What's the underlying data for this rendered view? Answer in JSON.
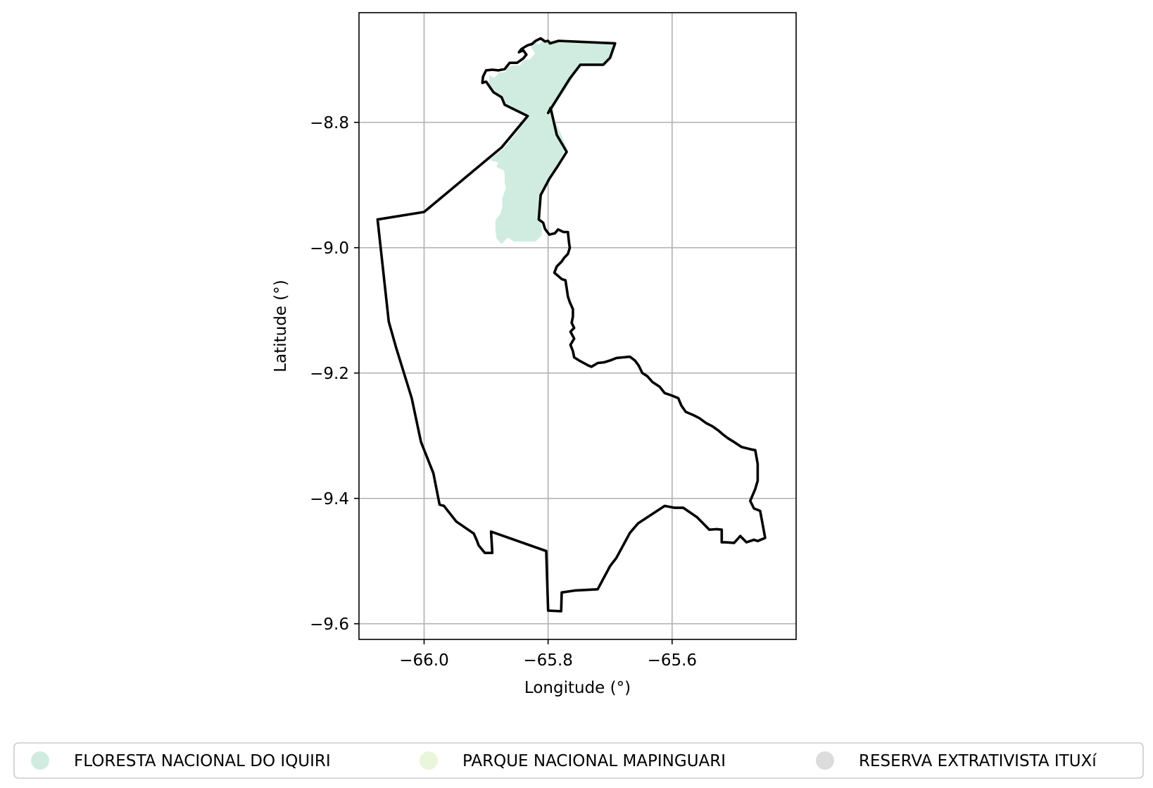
{
  "chart_data": {
    "type": "map",
    "xlabel": "Longitude (°)",
    "ylabel": "Latitude (°)",
    "xlim": [
      -66.105,
      -65.4
    ],
    "ylim": [
      -9.625,
      -8.625
    ],
    "x_ticks": [
      {
        "value": -66.0,
        "label": "−66.0"
      },
      {
        "value": -65.8,
        "label": "−65.8"
      },
      {
        "value": -65.6,
        "label": "−65.6"
      }
    ],
    "y_ticks": [
      {
        "value": -8.8,
        "label": "−8.8"
      },
      {
        "value": -9.0,
        "label": "−9.0"
      },
      {
        "value": -9.2,
        "label": "−9.2"
      },
      {
        "value": -9.4,
        "label": "−9.4"
      },
      {
        "value": -9.6,
        "label": "−9.6"
      }
    ],
    "grid": true,
    "legend_placement": "bottom, below plot, horizontal",
    "legend": [
      {
        "label": "FLORESTA NACIONAL DO IQUIRI",
        "color": "#d0ece1"
      },
      {
        "label": "PARQUE NACIONAL MAPINGUARI",
        "color": "#eaf6dc"
      },
      {
        "label": "RESERVA EXTRATIVISTA ITUXí",
        "color": "#dcdcdc"
      }
    ],
    "areas": [
      {
        "name": "FLORESTA NACIONAL DO IQUIRI",
        "fill": "#d0ece1",
        "stroke": "none",
        "coordinates": [
          [
            -65.895,
            -8.724
          ],
          [
            -65.887,
            -8.729
          ],
          [
            -65.879,
            -8.72
          ],
          [
            -65.869,
            -8.72
          ],
          [
            -65.866,
            -8.713
          ],
          [
            -65.858,
            -8.709
          ],
          [
            -65.845,
            -8.709
          ],
          [
            -65.84,
            -8.701
          ],
          [
            -65.83,
            -8.7
          ],
          [
            -65.821,
            -8.69
          ],
          [
            -65.831,
            -8.675
          ],
          [
            -65.823,
            -8.669
          ],
          [
            -65.815,
            -8.676
          ],
          [
            -65.81,
            -8.671
          ],
          [
            -65.79,
            -8.67
          ],
          [
            -65.783,
            -8.67
          ],
          [
            -65.692,
            -8.674
          ],
          [
            -65.701,
            -8.699
          ],
          [
            -65.711,
            -8.706
          ],
          [
            -65.721,
            -8.706
          ],
          [
            -65.747,
            -8.707
          ],
          [
            -65.755,
            -8.718
          ],
          [
            -65.765,
            -8.737
          ],
          [
            -65.795,
            -8.783
          ],
          [
            -65.77,
            -8.84
          ],
          [
            -65.782,
            -8.862
          ],
          [
            -65.79,
            -8.878
          ],
          [
            -65.798,
            -8.89
          ],
          [
            -65.805,
            -8.903
          ],
          [
            -65.81,
            -8.915
          ],
          [
            -65.813,
            -8.945
          ],
          [
            -65.81,
            -8.968
          ],
          [
            -65.81,
            -8.98
          ],
          [
            -65.82,
            -8.99
          ],
          [
            -65.83,
            -8.99
          ],
          [
            -65.847,
            -8.99
          ],
          [
            -65.855,
            -8.99
          ],
          [
            -65.865,
            -8.984
          ],
          [
            -65.875,
            -8.994
          ],
          [
            -65.883,
            -8.986
          ],
          [
            -65.885,
            -8.972
          ],
          [
            -65.885,
            -8.956
          ],
          [
            -65.877,
            -8.946
          ],
          [
            -65.874,
            -8.936
          ],
          [
            -65.874,
            -8.921
          ],
          [
            -65.868,
            -8.905
          ],
          [
            -65.87,
            -8.896
          ],
          [
            -65.87,
            -8.882
          ],
          [
            -65.872,
            -8.876
          ],
          [
            -65.882,
            -8.872
          ],
          [
            -65.883,
            -8.87
          ],
          [
            -65.88,
            -8.864
          ],
          [
            -65.895,
            -8.86
          ],
          [
            -65.87,
            -8.84
          ],
          [
            -65.85,
            -8.815
          ],
          [
            -65.833,
            -8.79
          ],
          [
            -65.87,
            -8.772
          ],
          [
            -65.875,
            -8.76
          ],
          [
            -65.882,
            -8.758
          ],
          [
            -65.895,
            -8.744
          ],
          [
            -65.895,
            -8.724
          ]
        ]
      }
    ],
    "outlines": [
      {
        "name": "boundary",
        "stroke": "#000000",
        "coordinates": [
          [
            -66.075,
            -8.955
          ],
          [
            -66.0,
            -8.943
          ],
          [
            -65.875,
            -8.84
          ],
          [
            -65.833,
            -8.79
          ],
          [
            -65.87,
            -8.772
          ],
          [
            -65.875,
            -8.76
          ],
          [
            -65.888,
            -8.752
          ],
          [
            -65.893,
            -8.745
          ],
          [
            -65.9,
            -8.735
          ],
          [
            -65.906,
            -8.737
          ],
          [
            -65.905,
            -8.727
          ],
          [
            -65.9,
            -8.717
          ],
          [
            -65.89,
            -8.716
          ],
          [
            -65.88,
            -8.717
          ],
          [
            -65.87,
            -8.715
          ],
          [
            -65.862,
            -8.705
          ],
          [
            -65.85,
            -8.705
          ],
          [
            -65.84,
            -8.698
          ],
          [
            -65.835,
            -8.692
          ],
          [
            -65.84,
            -8.685
          ],
          [
            -65.847,
            -8.688
          ],
          [
            -65.843,
            -8.683
          ],
          [
            -65.838,
            -8.68
          ],
          [
            -65.833,
            -8.677
          ],
          [
            -65.826,
            -8.675
          ],
          [
            -65.82,
            -8.67
          ],
          [
            -65.812,
            -8.666
          ],
          [
            -65.805,
            -8.671
          ],
          [
            -65.8,
            -8.67
          ],
          [
            -65.797,
            -8.674
          ],
          [
            -65.783,
            -8.67
          ],
          [
            -65.692,
            -8.674
          ],
          [
            -65.7,
            -8.697
          ],
          [
            -65.711,
            -8.708
          ],
          [
            -65.748,
            -8.708
          ],
          [
            -65.765,
            -8.73
          ],
          [
            -65.8,
            -8.785
          ],
          [
            -65.796,
            -8.777
          ],
          [
            -65.786,
            -8.82
          ],
          [
            -65.77,
            -8.847
          ],
          [
            -65.784,
            -8.869
          ],
          [
            -65.798,
            -8.89
          ],
          [
            -65.812,
            -8.916
          ],
          [
            -65.815,
            -8.955
          ],
          [
            -65.808,
            -8.96
          ],
          [
            -65.805,
            -8.97
          ],
          [
            -65.798,
            -8.979
          ],
          [
            -65.789,
            -8.977
          ],
          [
            -65.784,
            -8.971
          ],
          [
            -65.775,
            -8.975
          ],
          [
            -65.768,
            -8.975
          ],
          [
            -65.767,
            -8.985
          ],
          [
            -65.766,
            -8.994
          ],
          [
            -65.765,
            -9.0
          ],
          [
            -65.768,
            -9.01
          ],
          [
            -65.774,
            -9.016
          ],
          [
            -65.778,
            -9.022
          ],
          [
            -65.786,
            -9.03
          ],
          [
            -65.79,
            -9.04
          ],
          [
            -65.784,
            -9.045
          ],
          [
            -65.778,
            -9.05
          ],
          [
            -65.772,
            -9.052
          ],
          [
            -65.77,
            -9.065
          ],
          [
            -65.768,
            -9.078
          ],
          [
            -65.765,
            -9.087
          ],
          [
            -65.76,
            -9.098
          ],
          [
            -65.76,
            -9.11
          ],
          [
            -65.762,
            -9.12
          ],
          [
            -65.758,
            -9.128
          ],
          [
            -65.764,
            -9.134
          ],
          [
            -65.758,
            -9.145
          ],
          [
            -65.764,
            -9.155
          ],
          [
            -65.76,
            -9.165
          ],
          [
            -65.758,
            -9.175
          ],
          [
            -65.75,
            -9.18
          ],
          [
            -65.735,
            -9.188
          ],
          [
            -65.73,
            -9.19
          ],
          [
            -65.72,
            -9.184
          ],
          [
            -65.71,
            -9.183
          ],
          [
            -65.7,
            -9.18
          ],
          [
            -65.69,
            -9.176
          ],
          [
            -65.68,
            -9.175
          ],
          [
            -65.668,
            -9.174
          ],
          [
            -65.66,
            -9.18
          ],
          [
            -65.654,
            -9.188
          ],
          [
            -65.648,
            -9.2
          ],
          [
            -65.64,
            -9.205
          ],
          [
            -65.632,
            -9.214
          ],
          [
            -65.62,
            -9.222
          ],
          [
            -65.612,
            -9.232
          ],
          [
            -65.6,
            -9.236
          ],
          [
            -65.59,
            -9.24
          ],
          [
            -65.585,
            -9.252
          ],
          [
            -65.578,
            -9.262
          ],
          [
            -65.566,
            -9.267
          ],
          [
            -65.556,
            -9.272
          ],
          [
            -65.545,
            -9.28
          ],
          [
            -65.535,
            -9.285
          ],
          [
            -65.525,
            -9.292
          ],
          [
            -65.518,
            -9.298
          ],
          [
            -65.51,
            -9.304
          ],
          [
            -65.5,
            -9.31
          ],
          [
            -65.488,
            -9.318
          ],
          [
            -65.472,
            -9.322
          ],
          [
            -65.466,
            -9.323
          ],
          [
            -65.462,
            -9.345
          ],
          [
            -65.462,
            -9.372
          ],
          [
            -65.466,
            -9.385
          ],
          [
            -65.474,
            -9.404
          ],
          [
            -65.468,
            -9.416
          ],
          [
            -65.458,
            -9.42
          ],
          [
            -65.45,
            -9.463
          ],
          [
            -65.462,
            -9.468
          ],
          [
            -65.468,
            -9.466
          ],
          [
            -65.48,
            -9.47
          ],
          [
            -65.49,
            -9.46
          ],
          [
            -65.5,
            -9.471
          ],
          [
            -65.514,
            -9.47
          ],
          [
            -65.52,
            -9.47
          ],
          [
            -65.52,
            -9.45
          ],
          [
            -65.528,
            -9.449
          ],
          [
            -65.54,
            -9.45
          ],
          [
            -65.56,
            -9.43
          ],
          [
            -65.582,
            -9.415
          ],
          [
            -65.596,
            -9.415
          ],
          [
            -65.612,
            -9.412
          ],
          [
            -65.655,
            -9.44
          ],
          [
            -65.668,
            -9.455
          ],
          [
            -65.69,
            -9.495
          ],
          [
            -65.7,
            -9.508
          ],
          [
            -65.72,
            -9.545
          ],
          [
            -65.757,
            -9.547
          ],
          [
            -65.778,
            -9.55
          ],
          [
            -65.779,
            -9.58
          ],
          [
            -65.8,
            -9.579
          ],
          [
            -65.803,
            -9.484
          ],
          [
            -65.892,
            -9.453
          ],
          [
            -65.89,
            -9.487
          ],
          [
            -65.902,
            -9.487
          ],
          [
            -65.912,
            -9.475
          ],
          [
            -65.915,
            -9.467
          ],
          [
            -65.92,
            -9.456
          ],
          [
            -65.948,
            -9.437
          ],
          [
            -65.968,
            -9.412
          ],
          [
            -65.975,
            -9.41
          ],
          [
            -65.985,
            -9.36
          ],
          [
            -66.005,
            -9.31
          ],
          [
            -66.02,
            -9.24
          ],
          [
            -66.045,
            -9.16
          ],
          [
            -66.057,
            -9.118
          ],
          [
            -66.075,
            -8.955
          ]
        ]
      }
    ]
  }
}
